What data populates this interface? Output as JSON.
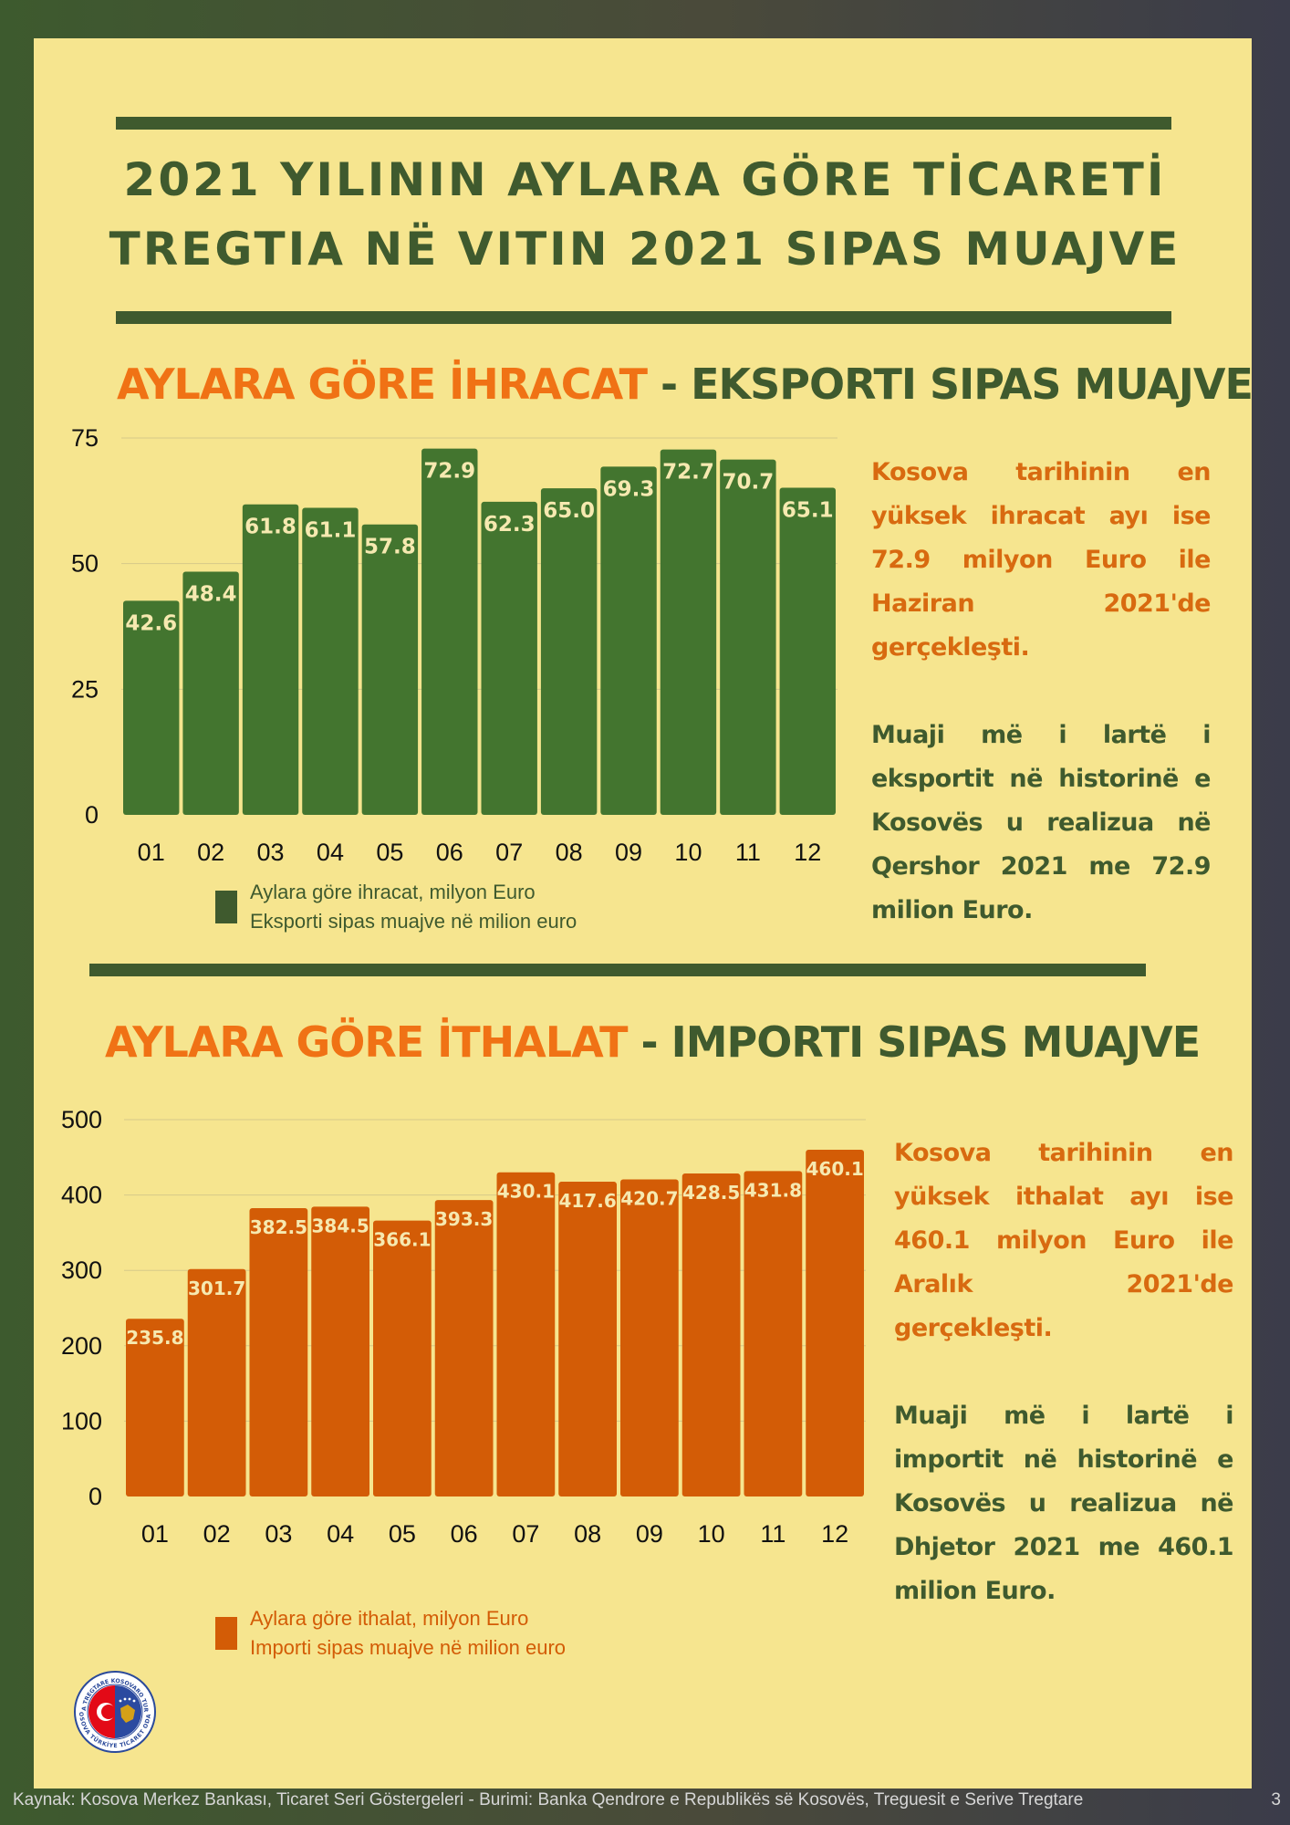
{
  "title": {
    "line1": "2021 YILININ AYLARA GÖRE TİCARETİ",
    "line2": "TREGTIA NË VITIN 2021 SIPAS MUAJVE"
  },
  "export": {
    "heading_tr": "AYLARA GÖRE İHRACAT",
    "heading_sep": " - ",
    "heading_al": "EKSPORTI SIPAS MUAJVE",
    "note_tr": "Kosova tarihinin en yüksek ihracat ayı ise 72.9 milyon Euro ile Haziran 2021'de gerçekleşti.",
    "note_al": "Muaji më i lartë i eksportit në historinë e Kosovës u realizua në Qershor 2021 me 72.9 milion Euro.",
    "legend_line1": "Aylara göre ihracat, milyon Euro",
    "legend_line2": "Eksporti sipas muajve në milion euro",
    "color": "#43752f"
  },
  "import": {
    "heading_tr": "AYLARA GÖRE İTHALAT",
    "heading_sep": " - ",
    "heading_al": "IMPORTI SIPAS MUAJVE",
    "note_tr": "Kosova tarihinin en yüksek ithalat ayı ise 460.1 milyon Euro ile Aralık 2021'de gerçekleşti.",
    "note_al": "Muaji më i lartë i importit në historinë e Kosovës u realizua në Dhjetor 2021 me 460.1 milion Euro.",
    "legend_line1": "Aylara göre ithalat, milyon Euro",
    "legend_line2": "Importi sipas muajve në milion euro",
    "color": "#d35c06"
  },
  "chart_data": [
    {
      "type": "bar",
      "categories": [
        "01",
        "02",
        "03",
        "04",
        "05",
        "06",
        "07",
        "08",
        "09",
        "10",
        "11",
        "12"
      ],
      "series": [
        {
          "name": "Aylara göre ihracat, milyon Euro / Eksporti sipas muajve në milion euro",
          "values": [
            42.6,
            48.4,
            61.8,
            61.1,
            57.8,
            72.9,
            62.3,
            65.0,
            69.3,
            72.7,
            70.7,
            65.1
          ]
        }
      ],
      "value_labels": [
        "42.6",
        "48.4",
        "61.8",
        "61.1",
        "57.8",
        "72.9",
        "62.3",
        "65.0",
        "69.3",
        "72.7",
        "70.7",
        "65.1"
      ],
      "title": "AYLARA GÖRE İHRACAT - EKSPORTI SIPAS MUAJVE",
      "ylim": [
        0,
        75
      ],
      "yticks": [
        0,
        25,
        50,
        75
      ],
      "grid": true,
      "legend": "bottom"
    },
    {
      "type": "bar",
      "categories": [
        "01",
        "02",
        "03",
        "04",
        "05",
        "06",
        "07",
        "08",
        "09",
        "10",
        "11",
        "12"
      ],
      "series": [
        {
          "name": "Aylara göre ithalat, milyon Euro / Importi sipas muajve në milion euro",
          "values": [
            235.8,
            301.7,
            382.5,
            384.5,
            366.1,
            393.3,
            430.1,
            417.6,
            420.7,
            428.5,
            431.8,
            460.1
          ]
        }
      ],
      "value_labels": [
        "235.8",
        "301.7",
        "382.5",
        "384.5",
        "366.1",
        "393.3",
        "430.1",
        "417.6",
        "420.7",
        "428.5",
        "431.8",
        "460.1"
      ],
      "title": "AYLARA GÖRE İTHALAT - IMPORTI SIPAS MUAJVE",
      "ylim": [
        0,
        500
      ],
      "yticks": [
        0,
        100,
        200,
        300,
        400,
        500
      ],
      "grid": true,
      "legend": "bottom"
    }
  ],
  "logo": {
    "text_top": "ODA TREGTARE KOSOVARO TURKE",
    "text_bottom": "KOSOVA TÜRKİYE TİCARET ODASI"
  },
  "footer": {
    "source": "Kaynak: Kosova Merkez Bankası, Ticaret Seri Göstergeleri -   Burimi: Banka Qendrore e Republikës së Kosovës, Treguesit e Serive Tregtare",
    "page": "3"
  }
}
